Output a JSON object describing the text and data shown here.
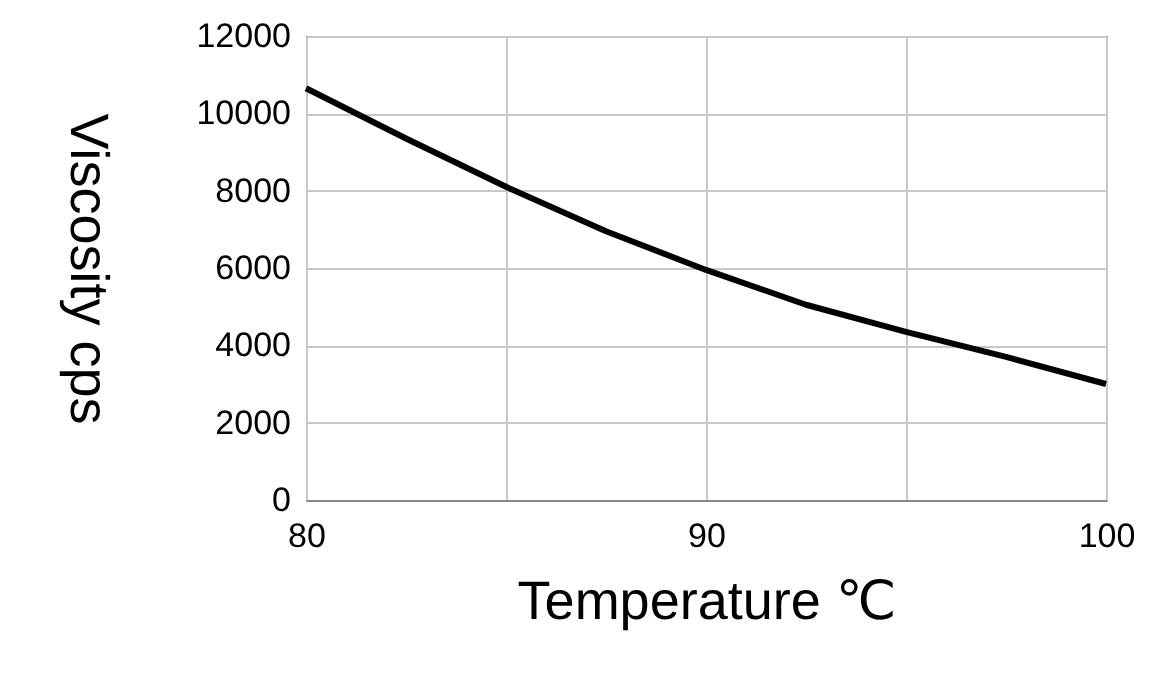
{
  "chart_data": {
    "type": "line",
    "xlabel": "Temperature ℃",
    "ylabel": "Viscosity cps",
    "x": [
      80,
      82.5,
      85,
      87.5,
      90,
      92.5,
      95,
      97.5,
      100
    ],
    "series": [
      {
        "color": "#000000",
        "values": [
          10650,
          9350,
          8100,
          6950,
          5950,
          5050,
          4350,
          3700,
          3000
        ]
      }
    ],
    "xlim": [
      80,
      100
    ],
    "xticks": [
      80,
      {
        "value": 85,
        "label": null
      },
      90,
      {
        "value": 95,
        "label": null
      },
      100
    ],
    "ylim": [
      0,
      12000
    ],
    "yticks": [
      0,
      2000,
      4000,
      6000,
      8000,
      10000,
      12000
    ],
    "grid": true,
    "marker": "none",
    "line_style": "solid"
  }
}
